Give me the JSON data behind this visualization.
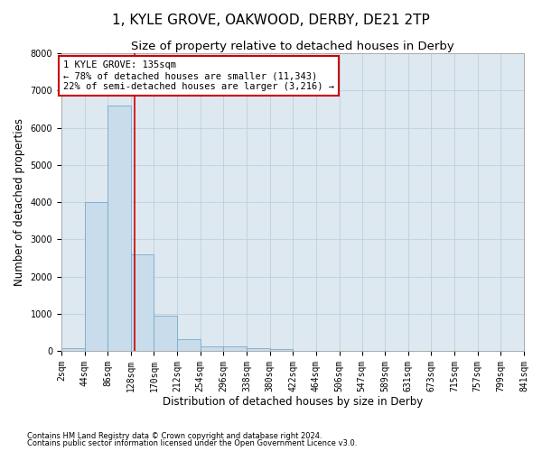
{
  "title": "1, KYLE GROVE, OAKWOOD, DERBY, DE21 2TP",
  "subtitle": "Size of property relative to detached houses in Derby",
  "xlabel": "Distribution of detached houses by size in Derby",
  "ylabel": "Number of detached properties",
  "footnote1": "Contains HM Land Registry data © Crown copyright and database right 2024.",
  "footnote2": "Contains public sector information licensed under the Open Government Licence v3.0.",
  "property_label": "1 KYLE GROVE: 135sqm",
  "annotation_line1": "← 78% of detached houses are smaller (11,343)",
  "annotation_line2": "22% of semi-detached houses are larger (3,216) →",
  "bin_edges": [
    2,
    44,
    86,
    128,
    170,
    212,
    254,
    296,
    338,
    380,
    422,
    464,
    506,
    547,
    589,
    631,
    673,
    715,
    757,
    799,
    841
  ],
  "bin_counts": [
    60,
    4000,
    6600,
    2600,
    950,
    320,
    120,
    110,
    60,
    55,
    0,
    0,
    0,
    0,
    0,
    0,
    0,
    0,
    0,
    0
  ],
  "bar_color": "#c8dcec",
  "bar_edge_color": "#7aaac8",
  "vline_color": "#cc0000",
  "vline_x": 135,
  "annotation_box_color": "#cc0000",
  "background_color": "#ffffff",
  "plot_bg_color": "#dde8f0",
  "grid_color": "#b8ccd8",
  "ylim": [
    0,
    8000
  ],
  "yticks": [
    0,
    1000,
    2000,
    3000,
    4000,
    5000,
    6000,
    7000,
    8000
  ],
  "title_fontsize": 11,
  "subtitle_fontsize": 9.5,
  "axis_label_fontsize": 8.5,
  "tick_fontsize": 7,
  "annotation_fontsize": 7.5
}
